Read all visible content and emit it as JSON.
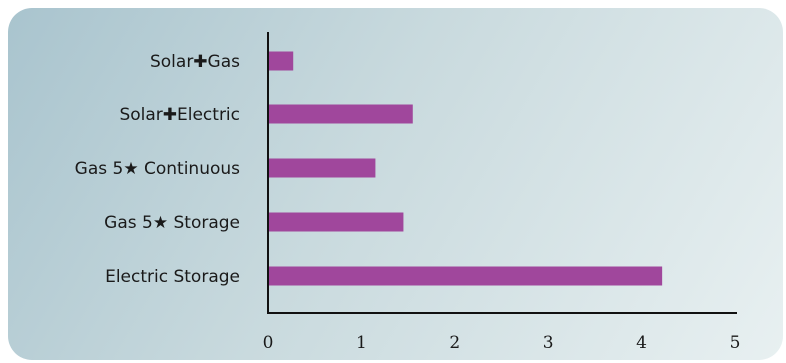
{
  "chart_data": {
    "type": "bar",
    "orientation": "horizontal",
    "categories": [
      "Solar✚Gas",
      "Solar✚Electric",
      "Gas 5★ Continuous",
      "Gas 5★ Storage",
      "Electric Storage"
    ],
    "values": [
      0.27,
      1.55,
      1.15,
      1.45,
      4.22
    ],
    "xlim": [
      0,
      5
    ],
    "xticks": [
      "0",
      "1",
      "2",
      "3",
      "4",
      "5"
    ],
    "bar_color": "#a0479c",
    "axis_color": "#111111",
    "grid": false,
    "legend": "none"
  }
}
